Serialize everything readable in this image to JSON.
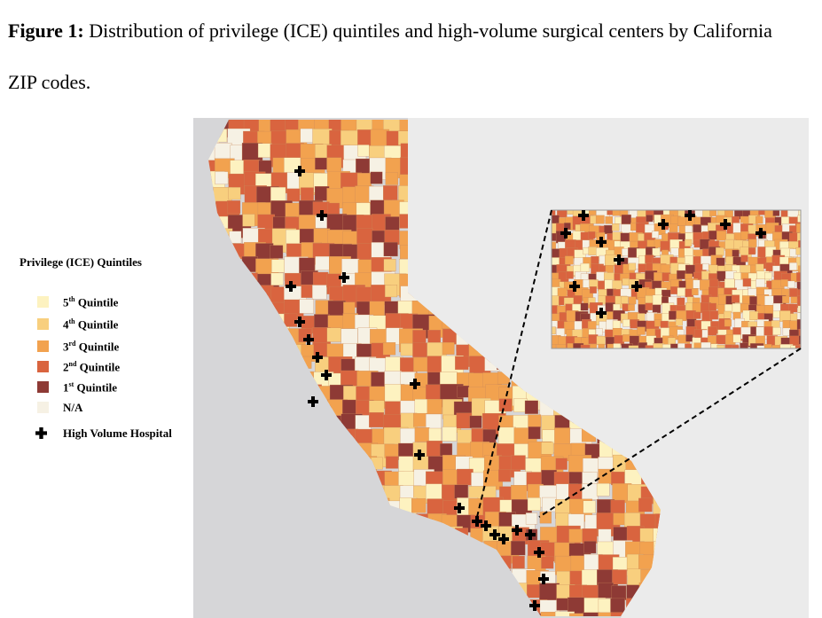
{
  "caption": {
    "label": "Figure 1:",
    "text": "Distribution of privilege (ICE) quintiles and high-volume surgical centers by California ZIP codes."
  },
  "legend": {
    "title": "Privilege (ICE) Quintiles",
    "items": [
      {
        "num": "5",
        "sup": "th",
        "text": "Quintile"
      },
      {
        "num": "4",
        "sup": "th",
        "text": "Quintile"
      },
      {
        "num": "3",
        "sup": "rd",
        "text": "Quintile"
      },
      {
        "num": "2",
        "sup": "nd",
        "text": "Quintile"
      },
      {
        "num": "1",
        "sup": "st",
        "text": "Quintile"
      },
      {
        "text": "N/A"
      }
    ],
    "hospital": "High Volume Hospital"
  }
}
